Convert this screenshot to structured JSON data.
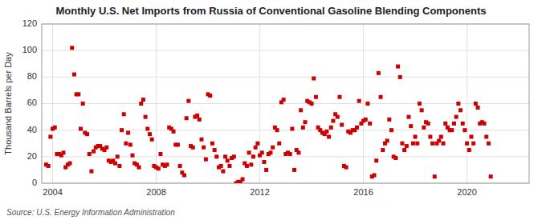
{
  "chart_data": {
    "type": "scatter",
    "title": "Monthly U.S. Net Imports from Russia of Conventional Gasoline Blending Components",
    "ylabel": "Thousand Barrels per Day",
    "source": "Source: U.S. Energy Information Administration",
    "color": "#cc0000",
    "marker": "square",
    "grid": true,
    "xlim": [
      2003.58,
      2022.4
    ],
    "xticks": [
      2004,
      2008,
      2012,
      2016,
      2020
    ],
    "ylim": [
      0,
      120
    ],
    "yticks": [
      0,
      20,
      40,
      60,
      80,
      100,
      120
    ],
    "x": [
      2003.75,
      2003.8333333333333,
      2003.9166666666667,
      2004,
      2004.0833333333333,
      2004.1666666666667,
      2004.25,
      2004.3333333333333,
      2004.4166666666667,
      2004.5,
      2004.5833333333333,
      2004.6666666666667,
      2004.75,
      2004.8333333333333,
      2004.9166666666667,
      2005,
      2005.0833333333333,
      2005.1666666666667,
      2005.25,
      2005.3333333333333,
      2005.4166666666667,
      2005.5,
      2005.5833333333333,
      2005.6666666666667,
      2005.75,
      2005.8333333333333,
      2005.9166666666667,
      2006,
      2006.0833333333333,
      2006.1666666666667,
      2006.25,
      2006.3333333333333,
      2006.4166666666667,
      2006.5,
      2006.5833333333333,
      2006.6666666666667,
      2006.75,
      2006.8333333333333,
      2006.9166666666667,
      2007,
      2007.0833333333333,
      2007.1666666666667,
      2007.25,
      2007.3333333333333,
      2007.4166666666667,
      2007.5,
      2007.5833333333333,
      2007.6666666666667,
      2007.75,
      2007.8333333333333,
      2007.9166666666667,
      2008,
      2008.0833333333333,
      2008.1666666666667,
      2008.25,
      2008.3333333333333,
      2008.4166666666667,
      2008.5,
      2008.5833333333333,
      2008.6666666666667,
      2008.75,
      2008.8333333333333,
      2008.9166666666667,
      2009,
      2009.0833333333333,
      2009.1666666666667,
      2009.25,
      2009.3333333333333,
      2009.4166666666667,
      2009.5,
      2009.5833333333333,
      2009.6666666666667,
      2009.75,
      2009.8333333333333,
      2009.9166666666667,
      2010,
      2010.0833333333333,
      2010.1666666666667,
      2010.25,
      2010.3333333333333,
      2010.4166666666667,
      2010.5,
      2010.5833333333333,
      2010.6666666666667,
      2010.75,
      2010.8333333333333,
      2010.9166666666667,
      2011,
      2011.0833333333333,
      2011.1666666666667,
      2011.25,
      2011.3333333333333,
      2011.4166666666667,
      2011.5,
      2011.5833333333333,
      2011.6666666666667,
      2011.75,
      2011.8333333333333,
      2011.9166666666667,
      2012,
      2012.0833333333333,
      2012.1666666666667,
      2012.25,
      2012.3333333333333,
      2012.4166666666667,
      2012.5,
      2012.5833333333333,
      2012.6666666666667,
      2012.75,
      2012.8333333333333,
      2012.9166666666667,
      2013,
      2013.0833333333333,
      2013.1666666666667,
      2013.25,
      2013.3333333333333,
      2013.4166666666667,
      2013.5,
      2013.5833333333333,
      2013.6666666666667,
      2013.75,
      2013.8333333333333,
      2013.9166666666667,
      2014,
      2014.0833333333333,
      2014.1666666666667,
      2014.25,
      2014.3333333333333,
      2014.4166666666667,
      2014.5,
      2014.5833333333333,
      2014.6666666666667,
      2014.75,
      2014.8333333333333,
      2014.9166666666667,
      2015,
      2015.0833333333333,
      2015.1666666666667,
      2015.25,
      2015.3333333333333,
      2015.4166666666667,
      2015.5,
      2015.5833333333333,
      2015.6666666666667,
      2015.75,
      2015.8333333333333,
      2015.9166666666667,
      2016,
      2016.0833333333333,
      2016.1666666666667,
      2016.25,
      2016.3333333333333,
      2016.4166666666667,
      2016.5,
      2016.5833333333333,
      2016.6666666666667,
      2016.75,
      2016.8333333333333,
      2016.9166666666667,
      2017,
      2017.0833333333333,
      2017.1666666666667,
      2017.25,
      2017.3333333333333,
      2017.4166666666667,
      2017.5,
      2017.5833333333333,
      2017.6666666666667,
      2017.75,
      2017.8333333333333,
      2017.9166666666667,
      2018,
      2018.0833333333333,
      2018.1666666666667,
      2018.25,
      2018.3333333333333,
      2018.4166666666667,
      2018.5,
      2018.5833333333333,
      2018.6666666666667,
      2018.75,
      2018.8333333333333,
      2018.9166666666667,
      2019,
      2019.0833333333333,
      2019.1666666666667,
      2019.25,
      2019.3333333333333,
      2019.4166666666667,
      2019.5,
      2019.5833333333333,
      2019.6666666666667,
      2019.75,
      2019.8333333333333,
      2019.9166666666667,
      2020,
      2020.0833333333333,
      2020.1666666666667,
      2020.25,
      2020.3333333333333,
      2020.4166666666667,
      2020.5,
      2020.5833333333333,
      2020.6666666666667,
      2020.75,
      2020.8333333333333,
      2020.9166666666667
    ],
    "values": [
      14,
      13,
      35,
      41,
      42,
      22,
      22,
      21,
      23,
      12,
      14,
      15,
      102,
      82,
      67,
      67,
      41,
      60,
      38,
      37,
      22,
      9,
      24,
      27,
      28,
      28,
      26,
      25,
      27,
      17,
      16,
      17,
      15,
      20,
      13,
      40,
      52,
      30,
      38,
      29,
      21,
      15,
      14,
      12,
      60,
      63,
      50,
      41,
      37,
      33,
      13,
      12,
      11,
      22,
      14,
      13,
      14,
      42,
      41,
      39,
      29,
      29,
      13,
      8,
      6,
      49,
      62,
      28,
      27,
      50,
      51,
      48,
      33,
      27,
      18,
      67,
      66,
      30,
      25,
      20,
      12,
      13,
      9,
      20,
      17,
      13,
      19,
      20,
      0,
      1,
      1,
      3,
      15,
      13,
      23,
      14,
      20,
      27,
      30,
      21,
      23,
      16,
      10,
      22,
      23,
      27,
      42,
      40,
      30,
      61,
      63,
      22,
      23,
      22,
      41,
      10,
      25,
      23,
      55,
      42,
      46,
      62,
      61,
      60,
      79,
      65,
      42,
      40,
      38,
      37,
      39,
      35,
      42,
      47,
      52,
      50,
      65,
      44,
      13,
      12,
      39,
      38,
      40,
      40,
      42,
      62,
      45,
      47,
      48,
      60,
      45,
      5,
      6,
      17,
      83,
      65,
      25,
      30,
      32,
      48,
      40,
      20,
      19,
      88,
      80,
      30,
      25,
      28,
      50,
      43,
      30,
      35,
      30,
      60,
      55,
      42,
      46,
      45,
      35,
      30,
      5,
      30,
      32,
      35,
      30,
      45,
      42,
      40,
      40,
      45,
      50,
      60,
      55,
      45,
      40,
      30,
      25,
      35,
      30,
      60,
      57,
      45,
      46,
      45,
      35,
      30,
      5
    ]
  }
}
